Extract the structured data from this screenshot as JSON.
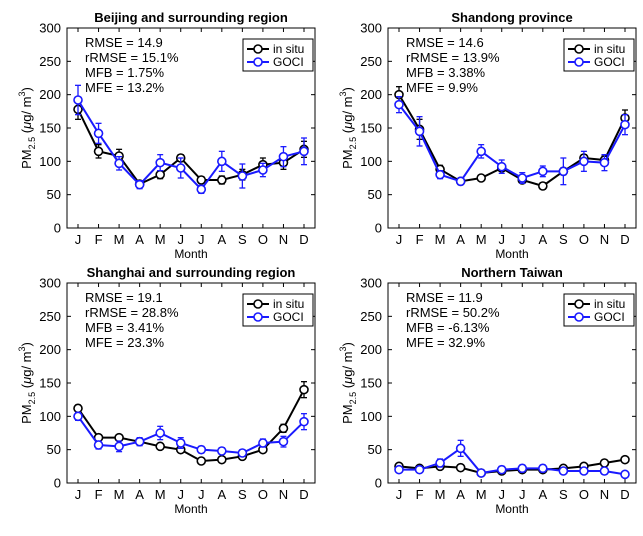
{
  "figure": {
    "x_ticks": [
      "J",
      "F",
      "M",
      "A",
      "M",
      "J",
      "J",
      "A",
      "S",
      "O",
      "N",
      "D"
    ],
    "y_ticks": [
      "0",
      "50",
      "100",
      "150",
      "200",
      "250",
      "300"
    ],
    "xlabel": "Month",
    "ylabel": "PM2.5 (μg/ m3)",
    "legend": [
      "in situ",
      "GOCI"
    ]
  },
  "colors": {
    "in_situ": "#000000",
    "goci": "#1a1aff"
  },
  "chart_data": [
    {
      "type": "line",
      "title": "Beijing and surrounding region",
      "xlabel": "Month",
      "ylabel": "PM2.5 (μg/ m3)",
      "ylim": [
        0,
        300
      ],
      "categories": [
        "J",
        "F",
        "M",
        "A",
        "M",
        "J",
        "J",
        "A",
        "S",
        "O",
        "N",
        "D"
      ],
      "stats": [
        "RMSE = 14.9",
        "rRMSE = 15.1%",
        "MFB = 1.75%",
        "MFE = 13.2%"
      ],
      "legend_position": "top-right",
      "series": [
        {
          "name": "in situ",
          "values": [
            178,
            115,
            108,
            66,
            80,
            105,
            72,
            72,
            80,
            95,
            98,
            118
          ],
          "errors": [
            15,
            10,
            10,
            5,
            6,
            5,
            5,
            6,
            8,
            10,
            10,
            12
          ]
        },
        {
          "name": "GOCI",
          "values": [
            192,
            142,
            97,
            65,
            98,
            90,
            58,
            100,
            78,
            87,
            107,
            115
          ],
          "errors": [
            22,
            15,
            10,
            6,
            12,
            15,
            6,
            15,
            18,
            10,
            15,
            20
          ]
        }
      ]
    },
    {
      "type": "line",
      "title": "Shandong province",
      "xlabel": "Month",
      "ylabel": "PM2.5 (μg/ m3)",
      "ylim": [
        0,
        300
      ],
      "categories": [
        "J",
        "F",
        "M",
        "A",
        "M",
        "J",
        "J",
        "A",
        "S",
        "O",
        "N",
        "D"
      ],
      "stats": [
        "RMSE = 14.6",
        "rRMSE = 13.9%",
        "MFB = 3.38%",
        "MFE = 9.9%"
      ],
      "legend_position": "top-right",
      "series": [
        {
          "name": "in situ",
          "values": [
            200,
            148,
            88,
            70,
            75,
            90,
            72,
            63,
            85,
            105,
            102,
            165
          ],
          "errors": [
            12,
            15,
            6,
            4,
            4,
            5,
            4,
            5,
            5,
            5,
            6,
            12
          ]
        },
        {
          "name": "GOCI",
          "values": [
            185,
            145,
            80,
            70,
            115,
            92,
            75,
            85,
            85,
            100,
            98,
            155
          ],
          "errors": [
            12,
            22,
            6,
            5,
            10,
            10,
            8,
            8,
            20,
            15,
            12,
            15
          ]
        }
      ]
    },
    {
      "type": "line",
      "title": "Shanghai and surrounding region",
      "xlabel": "Month",
      "ylabel": "PM2.5 (μg/ m3)",
      "ylim": [
        0,
        300
      ],
      "categories": [
        "J",
        "F",
        "M",
        "A",
        "M",
        "J",
        "J",
        "A",
        "S",
        "O",
        "N",
        "D"
      ],
      "stats": [
        "RMSE = 19.1",
        "rRMSE = 28.8%",
        "MFB = 3.41%",
        "MFE = 23.3%"
      ],
      "legend_position": "top-right",
      "series": [
        {
          "name": "in situ",
          "values": [
            112,
            68,
            68,
            62,
            55,
            50,
            33,
            35,
            40,
            50,
            82,
            140
          ],
          "errors": [
            5,
            4,
            4,
            4,
            4,
            3,
            3,
            3,
            3,
            4,
            6,
            12
          ]
        },
        {
          "name": "GOCI",
          "values": [
            100,
            57,
            55,
            62,
            75,
            60,
            50,
            48,
            45,
            60,
            62,
            92
          ],
          "errors": [
            6,
            6,
            8,
            6,
            10,
            8,
            5,
            5,
            5,
            6,
            8,
            12
          ]
        }
      ]
    },
    {
      "type": "line",
      "title": "Northern Taiwan",
      "xlabel": "Month",
      "ylabel": "PM2.5 (μg/ m3)",
      "ylim": [
        0,
        300
      ],
      "categories": [
        "J",
        "F",
        "M",
        "A",
        "M",
        "J",
        "J",
        "A",
        "S",
        "O",
        "N",
        "D"
      ],
      "stats": [
        "RMSE = 11.9",
        "rRMSE = 50.2%",
        "MFB = -6.13%",
        "MFE = 32.9%"
      ],
      "legend_position": "top-right",
      "series": [
        {
          "name": "in situ",
          "values": [
            25,
            22,
            25,
            23,
            15,
            18,
            20,
            20,
            22,
            25,
            30,
            35
          ],
          "errors": [
            3,
            3,
            3,
            3,
            2,
            2,
            2,
            2,
            2,
            3,
            3,
            3
          ]
        },
        {
          "name": "GOCI",
          "values": [
            20,
            20,
            30,
            52,
            15,
            20,
            22,
            22,
            18,
            18,
            18,
            13
          ],
          "errors": [
            4,
            4,
            6,
            12,
            4,
            5,
            5,
            5,
            4,
            4,
            5,
            4
          ]
        }
      ]
    }
  ]
}
